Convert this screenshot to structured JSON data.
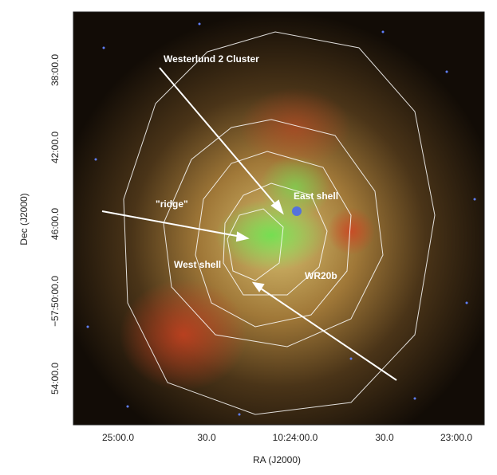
{
  "axes": {
    "x_label": "RA (J2000)",
    "y_label": "Dec (J2000)",
    "x_ticks": [
      "25:00.0",
      "30.0",
      "10:24:00.0",
      "30.0",
      "23:00.0"
    ],
    "y_ticks": [
      "38:00.0",
      "42:00.0",
      "46:00.0",
      "−57:50:00.0",
      "54:00.0"
    ]
  },
  "annotations": [
    "Westerlund 2 Cluster",
    "East shell",
    "\"ridge\"",
    "West shell",
    "WR20b"
  ]
}
